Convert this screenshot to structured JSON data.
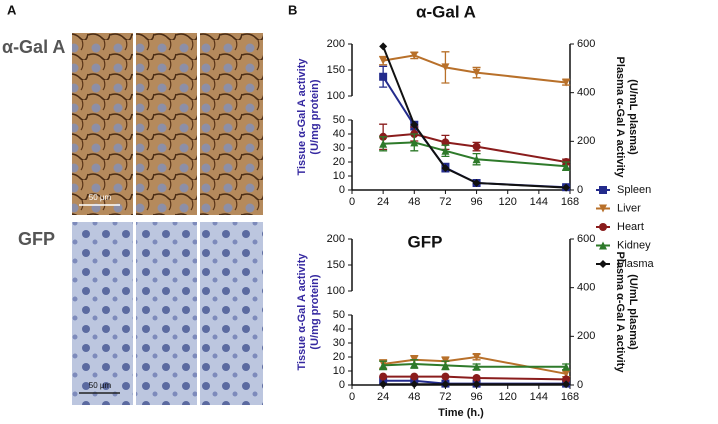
{
  "panel_labels": [
    "A",
    "B"
  ],
  "images": {
    "rows": [
      {
        "label": "α-Gal A",
        "scale_bar": "50 µm"
      },
      {
        "label": "GFP",
        "scale_bar": "50 µm"
      }
    ]
  },
  "chart_data": [
    {
      "type": "line",
      "title": "α-Gal A",
      "ylabel": [
        "Tissue α-Gal A activity",
        "(U/mg protein)"
      ],
      "y2label": [
        "Plasma α-Gal A activity",
        "(U/mL plasma)"
      ],
      "x": [
        24,
        48,
        72,
        96,
        165
      ],
      "xlim": [
        0,
        168
      ],
      "xticks": [
        0,
        24,
        48,
        72,
        96,
        120,
        144,
        168
      ],
      "ylim": [
        0,
        200
      ],
      "ybreak": [
        50,
        100
      ],
      "yticks": [
        0,
        10,
        20,
        30,
        40,
        50,
        100,
        150,
        200
      ],
      "y2lim": [
        0,
        600
      ],
      "y2ticks": [
        0,
        200,
        400,
        600
      ],
      "legend": "right",
      "series": [
        {
          "name": "Spleen",
          "color": "#232b8c",
          "marker": "square",
          "values": [
            137,
            46,
            16,
            5,
            2
          ],
          "errors": [
            20,
            3,
            3,
            1,
            1
          ]
        },
        {
          "name": "Liver",
          "color": "#b8702a",
          "marker": "triangle-down",
          "values": [
            168,
            178,
            155,
            145,
            126
          ],
          "errors": [
            8,
            6,
            30,
            10,
            5
          ]
        },
        {
          "name": "Heart",
          "color": "#8a1c1c",
          "marker": "circle",
          "values": [
            38,
            40,
            34,
            31,
            20
          ],
          "errors": [
            9,
            5,
            5,
            3,
            2
          ]
        },
        {
          "name": "Kidney",
          "color": "#2e7a2a",
          "marker": "triangle-up",
          "values": [
            33,
            34,
            28,
            22,
            17
          ],
          "errors": [
            5,
            6,
            4,
            4,
            3
          ]
        },
        {
          "name": "Plasma",
          "color": "#111111",
          "marker": "diamond",
          "axis": "y2",
          "values": [
            590,
            268,
            90,
            29,
            10
          ]
        }
      ]
    },
    {
      "type": "line",
      "title": "GFP",
      "ylabel": [
        "Tissue α-Gal A activity",
        "(U/mg protein)"
      ],
      "y2label": [
        "Plasma α-Gal A activity",
        "(U/mL plasma)"
      ],
      "xlabel": "Time (h.)",
      "x": [
        24,
        48,
        72,
        96,
        165
      ],
      "xlim": [
        0,
        168
      ],
      "xticks": [
        0,
        24,
        48,
        72,
        96,
        120,
        144,
        168
      ],
      "ylim": [
        0,
        200
      ],
      "ybreak": [
        50,
        100
      ],
      "yticks": [
        0,
        10,
        20,
        30,
        40,
        50,
        100,
        150,
        200
      ],
      "y2lim": [
        0,
        600
      ],
      "y2ticks": [
        0,
        200,
        400,
        600
      ],
      "series": [
        {
          "color": "#232b8c",
          "marker": "square",
          "values": [
            3,
            3,
            1,
            1,
            1
          ]
        },
        {
          "color": "#b8702a",
          "marker": "triangle-down",
          "values": [
            15,
            18,
            17,
            20,
            8
          ],
          "errors": [
            3,
            3,
            3,
            2,
            2
          ]
        },
        {
          "color": "#8a1c1c",
          "marker": "circle",
          "values": [
            6,
            6,
            6,
            5,
            4
          ]
        },
        {
          "color": "#2e7a2a",
          "marker": "triangle-up",
          "values": [
            14,
            15,
            14,
            13,
            13
          ],
          "errors": [
            3,
            3,
            3,
            2,
            2
          ]
        },
        {
          "color": "#111111",
          "marker": "diamond",
          "axis": "y2",
          "values": [
            3,
            3,
            3,
            3,
            3
          ]
        }
      ]
    }
  ]
}
